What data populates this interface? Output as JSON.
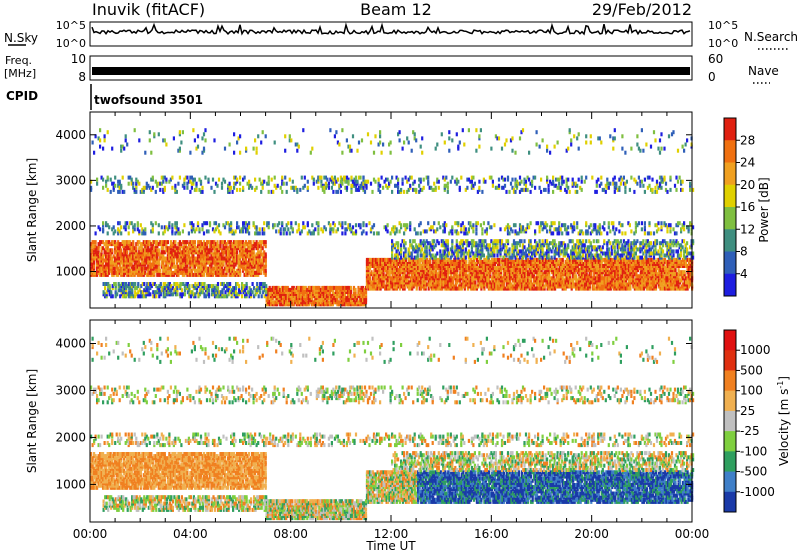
{
  "header": {
    "station": "Inuvik (fitACF)",
    "beam": "Beam 12",
    "date": "29/Feb/2012"
  },
  "top_panels": {
    "nsky": {
      "label": "N.Sky",
      "ticks": [
        "10^5",
        "10^0"
      ]
    },
    "nsearch": {
      "label": "N.Search",
      "ticks": [
        "10^5",
        "10^0"
      ]
    },
    "freq": {
      "label_line1": "Freq.",
      "label_line2": "[MHz]",
      "ticks": [
        "10",
        "8"
      ]
    },
    "nave": {
      "label": "Nave",
      "ticks": [
        "60",
        "0"
      ]
    },
    "cpid": {
      "label": "CPID",
      "value": "twofsound 3501"
    }
  },
  "chart_data": [
    {
      "type": "heatmap",
      "name": "power",
      "title": "",
      "xlabel": "",
      "ylabel": "Slant Range [km]",
      "x_range_hours": [
        0,
        24
      ],
      "ylim": [
        200,
        4500
      ],
      "yticks": [
        1000,
        2000,
        3000,
        4000
      ],
      "colorbar_label": "Power [dB]",
      "colorbar_ticks": [
        "28",
        "24",
        "20",
        "16",
        "12",
        "8",
        "4"
      ],
      "colors": [
        "#1e1ee0",
        "#2f5fb8",
        "#3f8f80",
        "#7fbf40",
        "#e0d000",
        "#f0a020",
        "#f07010",
        "#e02010"
      ]
    },
    {
      "type": "heatmap",
      "name": "velocity",
      "title": "",
      "xlabel": "Time UT",
      "ylabel": "Slant Range [km]",
      "x_range_hours": [
        0,
        24
      ],
      "xticks": [
        "00:00",
        "04:00",
        "08:00",
        "12:00",
        "16:00",
        "20:00",
        "00:00"
      ],
      "ylim": [
        200,
        4500
      ],
      "yticks": [
        1000,
        2000,
        3000,
        4000
      ],
      "colorbar_label": "Velocity [m s",
      "colorbar_unit_sup": "-1",
      "colorbar_label_end": "]",
      "colorbar_ticks": [
        "1000",
        "500",
        "100",
        "25",
        "-25",
        "-100",
        "-500",
        "-1000"
      ],
      "colors": [
        "#1a3aa8",
        "#3f7fc8",
        "#2f9f5f",
        "#7fcf3f",
        "#c0c0c0",
        "#f0b050",
        "#f08020",
        "#e03010",
        "#e01010"
      ]
    }
  ]
}
